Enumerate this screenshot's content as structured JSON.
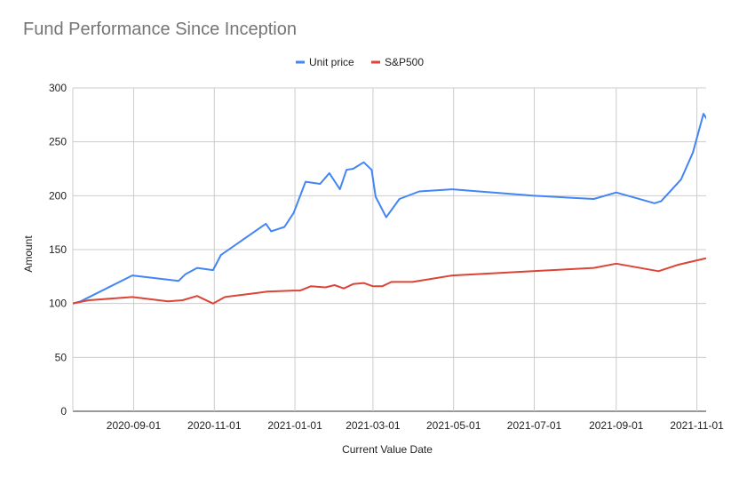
{
  "chart_data": {
    "type": "line",
    "title": "Fund Performance Since Inception",
    "xlabel": "Current Value Date",
    "ylabel": "Amount",
    "ylim": [
      0,
      300
    ],
    "yticks": [
      0,
      50,
      100,
      150,
      200,
      250,
      300
    ],
    "xlim": [
      "2020-07-17",
      "2021-11-08"
    ],
    "xticks": [
      "2020-09-01",
      "2020-11-01",
      "2021-01-01",
      "2021-03-01",
      "2021-05-01",
      "2021-07-01",
      "2021-09-01",
      "2021-11-01"
    ],
    "grid": true,
    "legend_position": "top",
    "series": [
      {
        "name": "Unit price",
        "color": "#4285f4",
        "points": [
          [
            "2020-07-17",
            100
          ],
          [
            "2020-07-23",
            102
          ],
          [
            "2020-08-31",
            126
          ],
          [
            "2020-10-05",
            121
          ],
          [
            "2020-10-10",
            127
          ],
          [
            "2020-10-19",
            133
          ],
          [
            "2020-10-31",
            131
          ],
          [
            "2020-11-06",
            145
          ],
          [
            "2020-12-10",
            174
          ],
          [
            "2020-12-14",
            167
          ],
          [
            "2020-12-24",
            171
          ],
          [
            "2020-12-31",
            184
          ],
          [
            "2021-01-09",
            213
          ],
          [
            "2021-01-20",
            211
          ],
          [
            "2021-01-27",
            221
          ],
          [
            "2021-02-04",
            206
          ],
          [
            "2021-02-09",
            224
          ],
          [
            "2021-02-14",
            225
          ],
          [
            "2021-02-22",
            231
          ],
          [
            "2021-02-28",
            224
          ],
          [
            "2021-03-03",
            199
          ],
          [
            "2021-03-11",
            180
          ],
          [
            "2021-03-21",
            197
          ],
          [
            "2021-04-05",
            204
          ],
          [
            "2021-04-30",
            206
          ],
          [
            "2021-06-30",
            200
          ],
          [
            "2021-08-15",
            197
          ],
          [
            "2021-09-01",
            203
          ],
          [
            "2021-09-30",
            193
          ],
          [
            "2021-10-05",
            195
          ],
          [
            "2021-10-20",
            215
          ],
          [
            "2021-10-29",
            240
          ],
          [
            "2021-11-06",
            276
          ],
          [
            "2021-11-16",
            257
          ]
        ]
      },
      {
        "name": "S&P500",
        "color": "#db4437",
        "points": [
          [
            "2020-07-17",
            100
          ],
          [
            "2020-07-29",
            103
          ],
          [
            "2020-08-31",
            106
          ],
          [
            "2020-09-27",
            102
          ],
          [
            "2020-10-08",
            103
          ],
          [
            "2020-10-19",
            107
          ],
          [
            "2020-10-31",
            100
          ],
          [
            "2020-11-09",
            106
          ],
          [
            "2020-12-05",
            110
          ],
          [
            "2020-12-11",
            111
          ],
          [
            "2020-12-31",
            112
          ],
          [
            "2021-01-05",
            112
          ],
          [
            "2021-01-13",
            116
          ],
          [
            "2021-01-24",
            115
          ],
          [
            "2021-01-31",
            117
          ],
          [
            "2021-02-07",
            114
          ],
          [
            "2021-02-14",
            118
          ],
          [
            "2021-02-22",
            119
          ],
          [
            "2021-03-01",
            116
          ],
          [
            "2021-03-08",
            116
          ],
          [
            "2021-03-15",
            120
          ],
          [
            "2021-03-31",
            120
          ],
          [
            "2021-04-30",
            126
          ],
          [
            "2021-06-30",
            130
          ],
          [
            "2021-08-15",
            133
          ],
          [
            "2021-09-01",
            137
          ],
          [
            "2021-10-03",
            130
          ],
          [
            "2021-10-18",
            136
          ],
          [
            "2021-11-01",
            140
          ],
          [
            "2021-11-08",
            142
          ]
        ]
      }
    ]
  }
}
